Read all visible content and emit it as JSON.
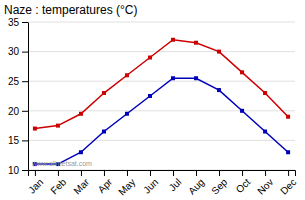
{
  "chart_data": {
    "type": "line",
    "title": "Naze : temperatures (°C)",
    "categories": [
      "Jan",
      "Feb",
      "Mar",
      "Apr",
      "May",
      "Jun",
      "Jul",
      "Aug",
      "Sep",
      "Oct",
      "Nov",
      "Dec"
    ],
    "series": [
      {
        "color": "#cc0000",
        "marker": "square",
        "values": [
          17,
          17.5,
          19.5,
          23,
          26,
          29,
          32,
          31.5,
          30,
          26.5,
          23,
          19
        ]
      },
      {
        "color": "#0000bb",
        "marker": "square",
        "values": [
          11,
          11,
          13,
          16.5,
          19.5,
          22.5,
          25.5,
          25.5,
          23.5,
          20,
          16.5,
          13
        ]
      }
    ],
    "ylim": [
      10,
      35
    ],
    "yticks": [
      10,
      15,
      20,
      25,
      30,
      35
    ],
    "grid": true,
    "annotations": [
      "www.allmetsat.com"
    ]
  }
}
